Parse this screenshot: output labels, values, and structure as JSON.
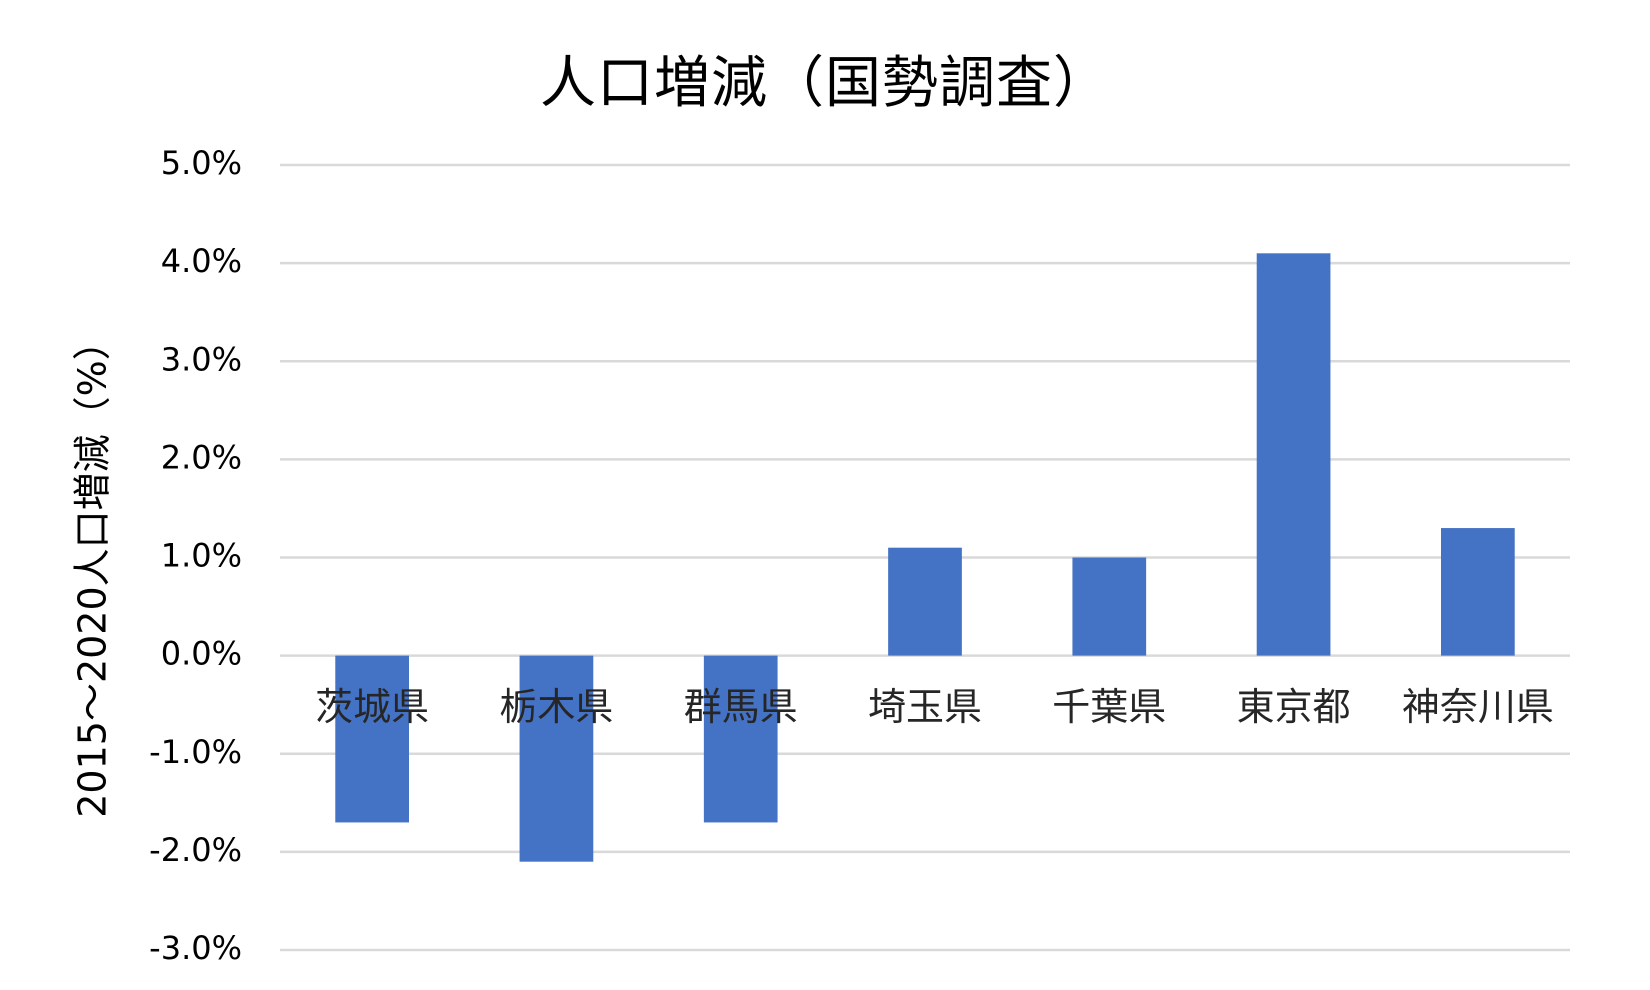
{
  "chart_data": {
    "type": "bar",
    "title": "人口増減（国勢調査）",
    "xlabel": "",
    "ylabel": "2015～2020人口増減（%）",
    "categories": [
      "茨城県",
      "栃木県",
      "群馬県",
      "埼玉県",
      "千葉県",
      "東京都",
      "神奈川県"
    ],
    "values": [
      -1.7,
      -2.1,
      -1.7,
      1.1,
      1.0,
      4.1,
      1.3
    ],
    "ylim": [
      -3.0,
      5.0
    ],
    "yticks": [
      "-3.0%",
      "-2.0%",
      "-1.0%",
      "0.0%",
      "1.0%",
      "2.0%",
      "3.0%",
      "4.0%",
      "5.0%"
    ],
    "bar_color": "#4472c4",
    "grid": true,
    "legend": "none"
  }
}
